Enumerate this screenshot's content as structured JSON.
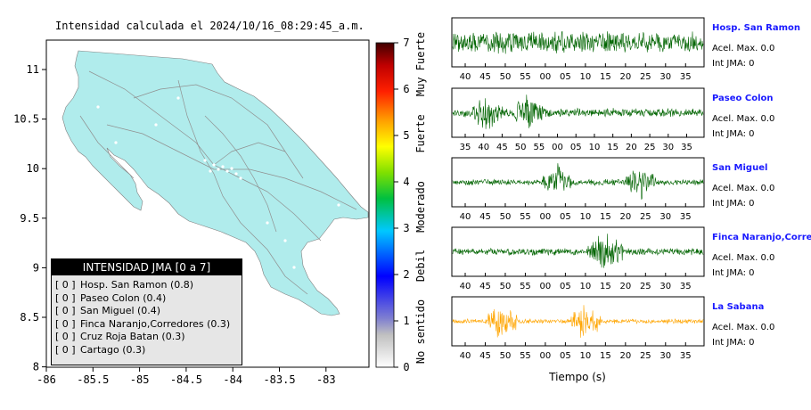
{
  "map": {
    "title": "Intensidad calculada el 2024/10/16_08:29:45_a.m.",
    "x_ticks": [
      "-86",
      "-85.5",
      "-85",
      "-84.5",
      "-84",
      "-83.5",
      "-83"
    ],
    "y_ticks": [
      "11",
      "10.5",
      "10",
      "9.5",
      "9",
      "8.5",
      "8"
    ],
    "land_color": "#b0ecec",
    "sea_color": "#ffffff"
  },
  "colorbar": {
    "tick_labels": [
      "0",
      "1",
      "2",
      "3",
      "4",
      "5",
      "6",
      "7"
    ],
    "category_labels": [
      "No sentido",
      "Debil",
      "Moderado",
      "Fuerte",
      "Muy Fuerte"
    ]
  },
  "legend": {
    "title": "INTENSIDAD JMA [0 a 7]",
    "items": [
      {
        "bracket": "[ 0 ]",
        "text": "Hosp. San Ramon (0.8)"
      },
      {
        "bracket": "[ 0 ]",
        "text": "Paseo Colon (0.4)"
      },
      {
        "bracket": "[ 0 ]",
        "text": "San Miguel (0.4)"
      },
      {
        "bracket": "[ 0 ]",
        "text": "Finca Naranjo,Corredores (0.3)"
      },
      {
        "bracket": "[ 0 ]",
        "text": "Cruz Roja Batan (0.3)"
      },
      {
        "bracket": "[ 0 ]",
        "text": "Cartago (0.3)"
      }
    ]
  },
  "traces": {
    "xlabel": "Tiempo (s)",
    "panels": [
      {
        "name": "Hosp. San Ramon",
        "acel": "Acel. Max. 0.0",
        "int": "Int JMA: 0",
        "ticks": [
          "40",
          "45",
          "50",
          "55",
          "00",
          "05",
          "10",
          "15",
          "20",
          "25",
          "30",
          "35"
        ],
        "color": "#006400",
        "burst": [],
        "noise": 0.55
      },
      {
        "name": "Paseo Colon",
        "acel": "Acel. Max. 0.0",
        "int": "Int JMA: 0",
        "ticks": [
          "35",
          "40",
          "45",
          "50",
          "55",
          "00",
          "05",
          "10",
          "15",
          "20",
          "25",
          "30",
          "35"
        ],
        "color": "#006400",
        "burst": [
          0.14,
          0.3
        ],
        "noise": 0.22
      },
      {
        "name": "San Miguel",
        "acel": "Acel. Max. 0.0",
        "int": "Int JMA: 0",
        "ticks": [
          "40",
          "45",
          "50",
          "55",
          "00",
          "05",
          "10",
          "15",
          "20",
          "25",
          "30",
          "35"
        ],
        "color": "#006400",
        "burst": [
          0.42,
          0.75
        ],
        "noise": 0.15
      },
      {
        "name": "Finca Naranjo,Corredor",
        "acel": "Acel. Max. 0.0",
        "int": "Int JMA: 0",
        "ticks": [
          "40",
          "45",
          "50",
          "55",
          "00",
          "05",
          "10",
          "15",
          "20",
          "25",
          "30",
          "35"
        ],
        "color": "#006400",
        "burst": [
          0.6,
          0.62
        ],
        "noise": 0.18
      },
      {
        "name": "La Sabana",
        "acel": "Acel. Max. 0.0",
        "int": "Int JMA: 0",
        "ticks": [
          "40",
          "45",
          "50",
          "55",
          "00",
          "05",
          "10",
          "15",
          "20",
          "25",
          "30",
          "35"
        ],
        "color": "#ffa500",
        "burst": [
          0.2,
          0.53
        ],
        "noise": 0.12
      }
    ]
  }
}
